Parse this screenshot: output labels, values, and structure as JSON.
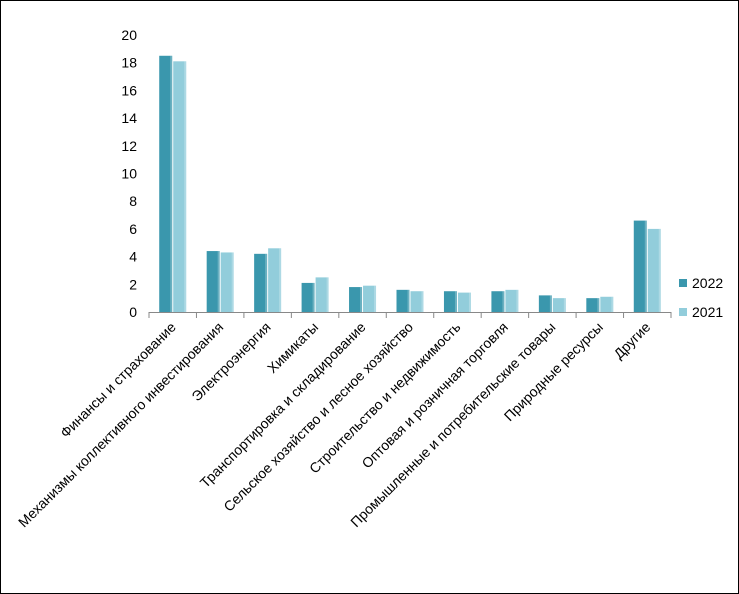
{
  "chart_data": {
    "type": "bar",
    "title": "",
    "xlabel": "",
    "ylabel": "",
    "ylim": [
      0,
      20
    ],
    "yticks": [
      0,
      2,
      4,
      6,
      8,
      10,
      12,
      14,
      16,
      18,
      20
    ],
    "grid": false,
    "legend_position": "right",
    "categories": [
      "Финансы и страхование",
      "Механизмы коллективного инвестирования",
      "Электроэнергия",
      "Химикаты",
      "Транспортировка и складирование",
      "Сельское хозяйство и лесное хозяйство",
      "Строительство и недвижимость",
      "Оптовая и розничная торговля",
      "Промышленные и потребительские товары",
      "Природные ресурсы",
      "Другие"
    ],
    "series": [
      {
        "name": "2022",
        "color": "#3a97ad",
        "values": [
          18.5,
          4.4,
          4.2,
          2.1,
          1.8,
          1.6,
          1.5,
          1.5,
          1.2,
          1.0,
          6.6
        ]
      },
      {
        "name": "2021",
        "color": "#92cddb",
        "values": [
          18.1,
          4.3,
          4.6,
          2.5,
          1.9,
          1.5,
          1.4,
          1.6,
          1.0,
          1.1,
          6.0
        ]
      }
    ]
  }
}
